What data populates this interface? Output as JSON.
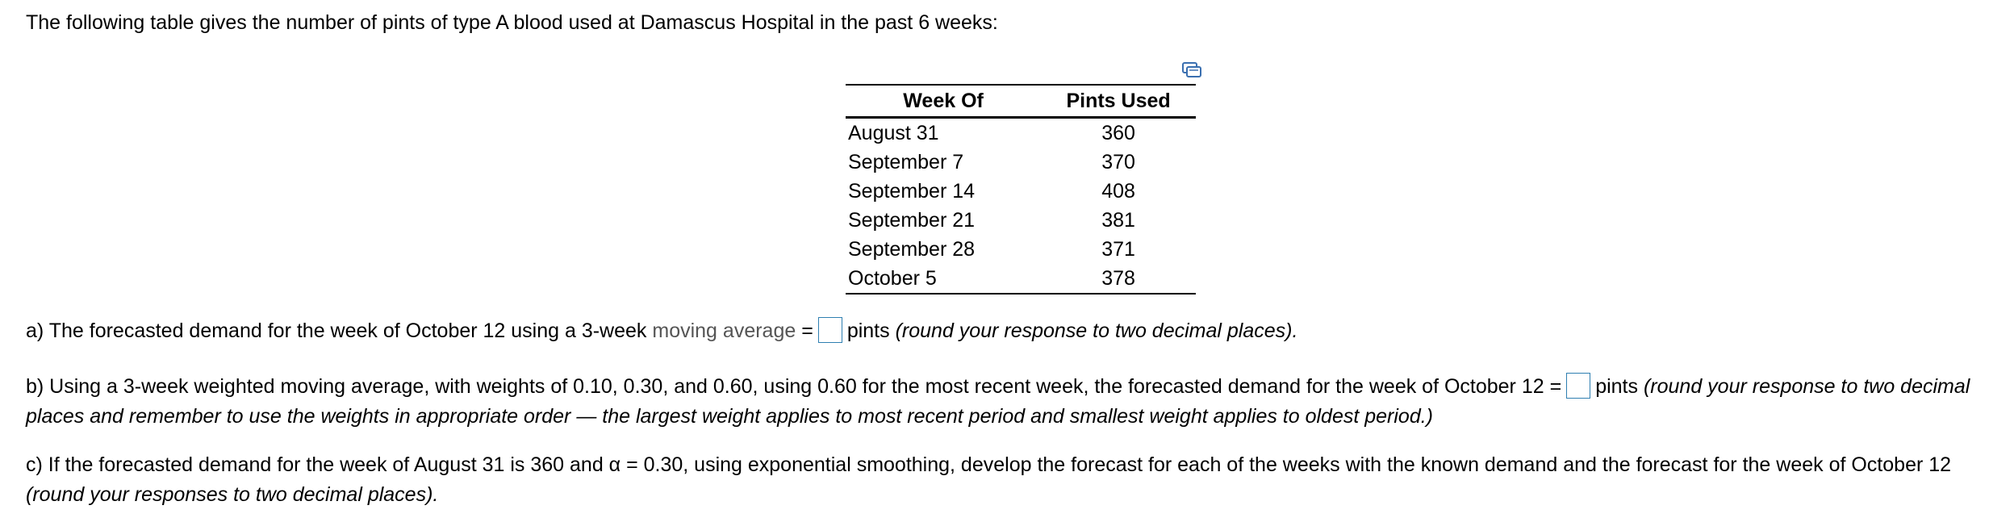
{
  "intro": "The following table gives the number of pints of type A blood used at Damascus Hospital in the past 6 weeks:",
  "icons": {
    "copy": "copy-table-icon"
  },
  "table": {
    "headers": [
      "Week Of",
      "Pints Used"
    ],
    "rows": [
      {
        "week": "August 31",
        "pints": "360"
      },
      {
        "week": "September 7",
        "pints": "370"
      },
      {
        "week": "September 14",
        "pints": "408"
      },
      {
        "week": "September 21",
        "pints": "381"
      },
      {
        "week": "September 28",
        "pints": "371"
      },
      {
        "week": "October 5",
        "pints": "378"
      }
    ]
  },
  "question_a": {
    "text_before": "a) The forecasted demand for the week of October 12 using a 3-week ",
    "link": "moving average",
    "equals": " =",
    "after": "pints ",
    "note": "(round your response to two decimal places).",
    "answer": ""
  },
  "question_b": {
    "text_before": "b) Using a 3-week weighted moving average, with weights of 0.10, 0.30, and 0.60, using 0.60 for the most recent week, the forecasted demand for the week of October 12 =",
    "after": "pints ",
    "note": "(round your response to two decimal places and remember to use the weights in appropriate order — the largest weight applies to most recent period and smallest weight applies to oldest period.)",
    "answer": ""
  },
  "question_c": {
    "text": "c) If the forecasted demand for the week of August 31 is 360 and α = 0.30, using exponential smoothing, develop the forecast for each of the weeks with the known demand and the forecast for the week of October 12 ",
    "note": "(round your responses to two decimal places)."
  }
}
